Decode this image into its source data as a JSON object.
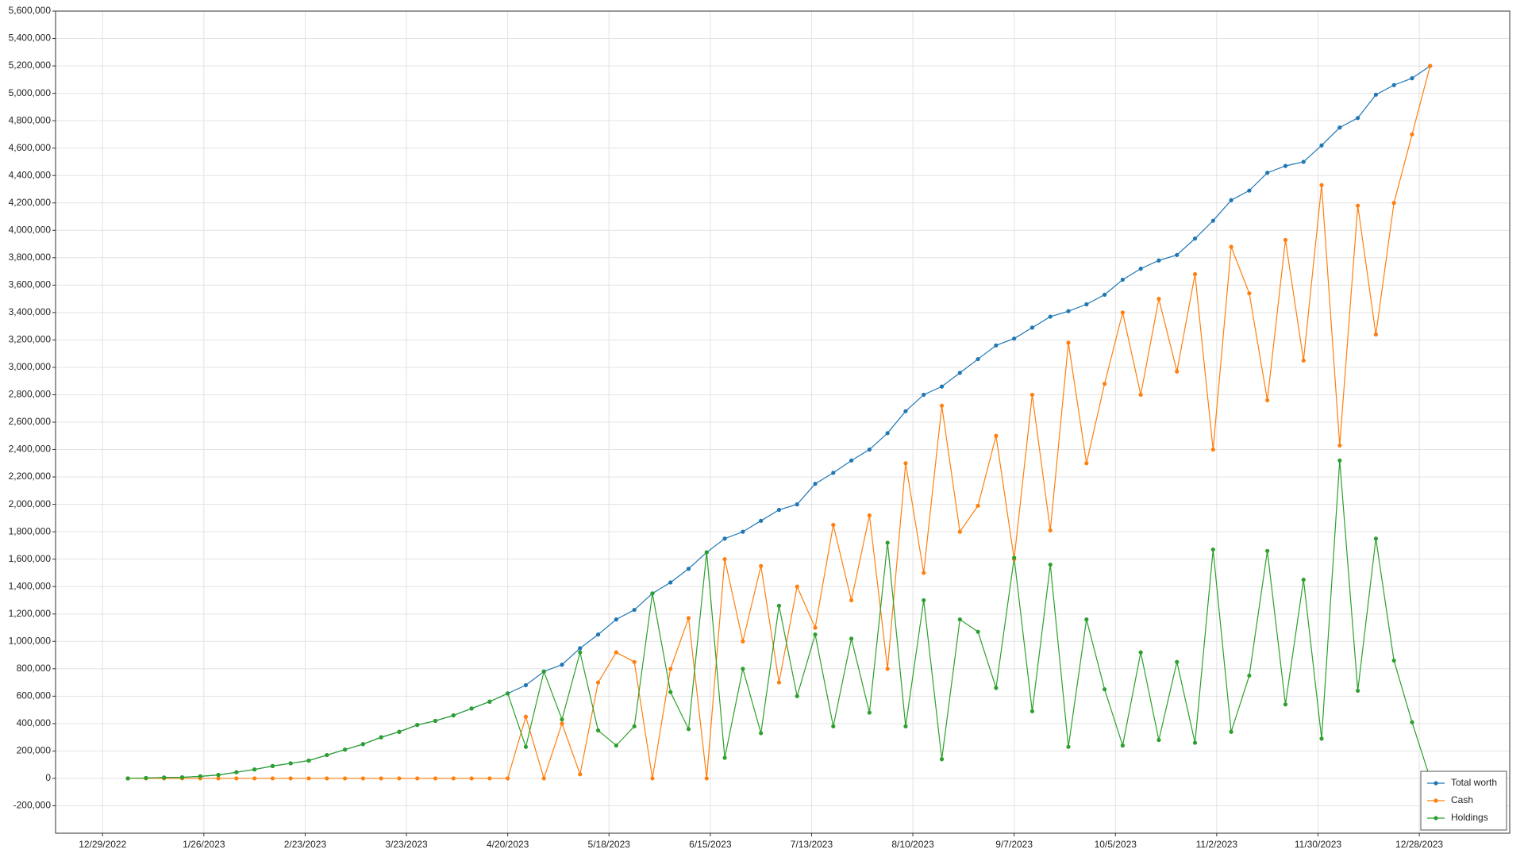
{
  "chart_data": {
    "type": "line",
    "x": [
      "1/5/2023",
      "1/10/2023",
      "1/15/2023",
      "1/20/2023",
      "1/25/2023",
      "1/30/2023",
      "2/4/2023",
      "2/9/2023",
      "2/14/2023",
      "2/19/2023",
      "2/24/2023",
      "3/1/2023",
      "3/6/2023",
      "3/11/2023",
      "3/16/2023",
      "3/21/2023",
      "3/26/2023",
      "3/31/2023",
      "4/5/2023",
      "4/10/2023",
      "4/15/2023",
      "4/20/2023",
      "4/25/2023",
      "4/30/2023",
      "5/5/2023",
      "5/10/2023",
      "5/15/2023",
      "5/20/2023",
      "5/25/2023",
      "5/30/2023",
      "6/4/2023",
      "6/9/2023",
      "6/14/2023",
      "6/19/2023",
      "6/24/2023",
      "6/29/2023",
      "7/4/2023",
      "7/9/2023",
      "7/14/2023",
      "7/19/2023",
      "7/24/2023",
      "7/29/2023",
      "8/3/2023",
      "8/8/2023",
      "8/13/2023",
      "8/18/2023",
      "8/23/2023",
      "8/28/2023",
      "9/2/2023",
      "9/7/2023",
      "9/12/2023",
      "9/17/2023",
      "9/22/2023",
      "9/27/2023",
      "10/2/2023",
      "10/7/2023",
      "10/12/2023",
      "10/17/2023",
      "10/22/2023",
      "10/27/2023",
      "11/1/2023",
      "11/6/2023",
      "11/11/2023",
      "11/16/2023",
      "11/21/2023",
      "11/26/2023",
      "12/1/2023",
      "12/6/2023",
      "12/11/2023",
      "12/16/2023",
      "12/21/2023",
      "12/26/2023",
      "12/31/2023"
    ],
    "series": [
      {
        "name": "Total worth",
        "color": "#1f77b4",
        "values": [
          0,
          3000,
          6000,
          8000,
          15000,
          25000,
          45000,
          65000,
          90000,
          110000,
          130000,
          170000,
          210000,
          250000,
          300000,
          340000,
          390000,
          420000,
          460000,
          510000,
          560000,
          620000,
          680000,
          780000,
          830000,
          950000,
          1050000,
          1160000,
          1230000,
          1350000,
          1430000,
          1530000,
          1650000,
          1750000,
          1800000,
          1880000,
          1960000,
          2000000,
          2150000,
          2230000,
          2320000,
          2400000,
          2520000,
          2680000,
          2800000,
          2860000,
          2960000,
          3060000,
          3160000,
          3210000,
          3290000,
          3370000,
          3410000,
          3460000,
          3530000,
          3640000,
          3720000,
          3780000,
          3820000,
          3940000,
          4070000,
          4220000,
          4290000,
          4420000,
          4470000,
          4500000,
          4620000,
          4750000,
          4820000,
          4990000,
          5060000,
          5110000,
          5200000
        ]
      },
      {
        "name": "Cash",
        "color": "#ff7f0e",
        "values": [
          0,
          0,
          0,
          0,
          0,
          0,
          0,
          0,
          0,
          0,
          0,
          0,
          0,
          0,
          0,
          0,
          0,
          0,
          0,
          0,
          0,
          0,
          450000,
          0,
          400000,
          30000,
          700000,
          920000,
          850000,
          0,
          800000,
          1170000,
          0,
          1600000,
          1000000,
          1550000,
          700000,
          1400000,
          1100000,
          1850000,
          1300000,
          1920000,
          800000,
          2300000,
          1500000,
          2720000,
          1800000,
          1990000,
          2500000,
          1600000,
          2800000,
          1810000,
          3180000,
          2300000,
          2880000,
          3400000,
          2800000,
          3500000,
          2970000,
          3680000,
          2400000,
          3880000,
          3540000,
          2760000,
          3930000,
          3050000,
          4330000,
          2430000,
          4180000,
          3240000,
          4200000,
          4700000,
          5200000
        ]
      },
      {
        "name": "Holdings",
        "color": "#2ca02c",
        "values": [
          0,
          3000,
          6000,
          8000,
          15000,
          25000,
          45000,
          65000,
          90000,
          110000,
          130000,
          170000,
          210000,
          250000,
          300000,
          340000,
          390000,
          420000,
          460000,
          510000,
          560000,
          620000,
          230000,
          780000,
          430000,
          920000,
          350000,
          240000,
          380000,
          1350000,
          630000,
          360000,
          1650000,
          150000,
          800000,
          330000,
          1260000,
          600000,
          1050000,
          380000,
          1020000,
          480000,
          1720000,
          380000,
          1300000,
          140000,
          1160000,
          1070000,
          660000,
          1610000,
          490000,
          1560000,
          230000,
          1160000,
          650000,
          240000,
          920000,
          280000,
          850000,
          260000,
          1670000,
          340000,
          750000,
          1660000,
          540000,
          1450000,
          290000,
          2320000,
          640000,
          1750000,
          860000,
          410000,
          0
        ]
      }
    ],
    "xlim": [
      "12/16/2022",
      "1/22/2024"
    ],
    "xticks": [
      "12/29/2022",
      "1/26/2023",
      "2/23/2023",
      "3/23/2023",
      "4/20/2023",
      "5/18/2023",
      "6/15/2023",
      "7/13/2023",
      "8/10/2023",
      "9/7/2023",
      "10/5/2023",
      "11/2/2023",
      "11/30/2023",
      "12/28/2023"
    ],
    "ylim": [
      -400000,
      5600000
    ],
    "yticks": [
      {
        "value": -200000,
        "label": "-200,000"
      },
      0,
      {
        "value": 200000,
        "label": "200,000"
      },
      {
        "value": 400000,
        "label": "400,000"
      },
      {
        "value": 600000,
        "label": "600,000"
      },
      {
        "value": 800000,
        "label": "800,000"
      },
      {
        "value": 1000000,
        "label": "1,000,000"
      },
      {
        "value": 1200000,
        "label": "1,200,000"
      },
      {
        "value": 1400000,
        "label": "1,400,000"
      },
      {
        "value": 1600000,
        "label": "1,600,000"
      },
      {
        "value": 1800000,
        "label": "1,800,000"
      },
      {
        "value": 2000000,
        "label": "2,000,000"
      },
      {
        "value": 2200000,
        "label": "2,200,000"
      },
      {
        "value": 2400000,
        "label": "2,400,000"
      },
      {
        "value": 2600000,
        "label": "2,600,000"
      },
      {
        "value": 2800000,
        "label": "2,800,000"
      },
      {
        "value": 3000000,
        "label": "3,000,000"
      },
      {
        "value": 3200000,
        "label": "3,200,000"
      },
      {
        "value": 3400000,
        "label": "3,400,000"
      },
      {
        "value": 3600000,
        "label": "3,600,000"
      },
      {
        "value": 3800000,
        "label": "3,800,000"
      },
      {
        "value": 4000000,
        "label": "4,000,000"
      },
      {
        "value": 4200000,
        "label": "4,200,000"
      },
      {
        "value": 4400000,
        "label": "4,400,000"
      },
      {
        "value": 4600000,
        "label": "4,600,000"
      },
      {
        "value": 4800000,
        "label": "4,800,000"
      },
      {
        "value": 5000000,
        "label": "5,000,000"
      },
      {
        "value": 5200000,
        "label": "5,200,000"
      },
      {
        "value": 5400000,
        "label": "5,400,000"
      },
      {
        "value": 5600000,
        "label": "5,600,000"
      }
    ],
    "grid": true,
    "legend": "lower right"
  }
}
